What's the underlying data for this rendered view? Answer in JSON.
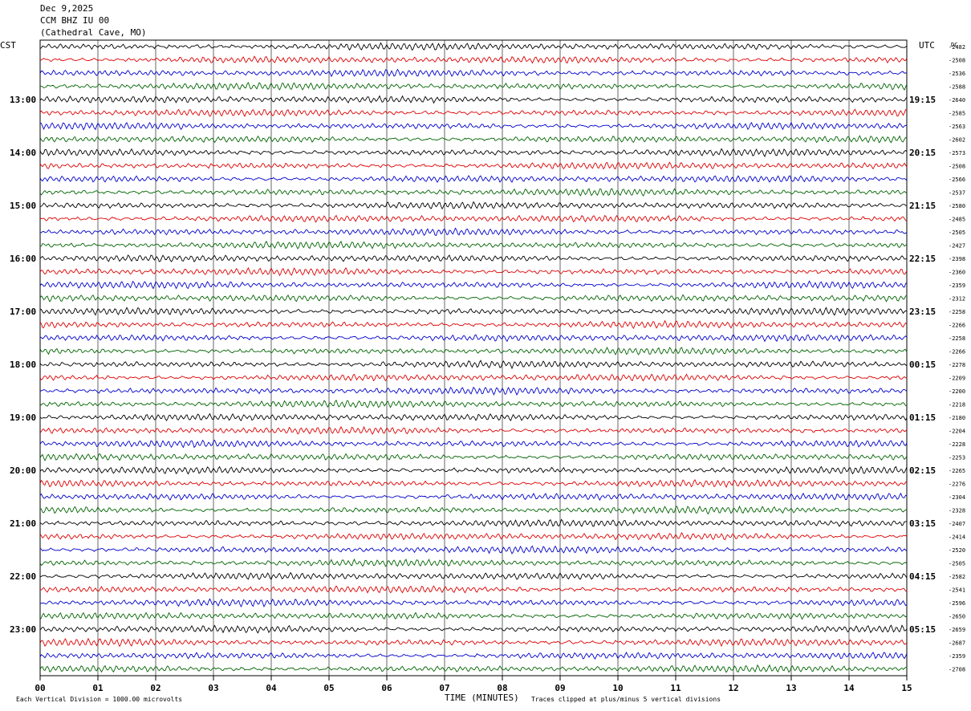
{
  "header": {
    "date": "Dec 9,2025",
    "station": "CCM BHZ IU 00",
    "location": "(Cathedral Cave, MO)"
  },
  "footer": {
    "scale_note": "Each Vertical Division = 1000.00 microvolts",
    "clip_note": "Traces clipped at plus/minus 5 vertical divisions"
  },
  "colors": {
    "trace_cycle": [
      "#000000",
      "#dd0000",
      "#0000cc",
      "#006400"
    ],
    "grid": "#000000",
    "background": "#ffffff"
  },
  "chart_data": {
    "type": "line",
    "xlabel": "TIME (MINUTES)",
    "x_ticks": [
      "00",
      "01",
      "02",
      "03",
      "04",
      "05",
      "06",
      "07",
      "08",
      "09",
      "10",
      "11",
      "12",
      "13",
      "14",
      "15"
    ],
    "xlim": [
      0,
      15
    ],
    "left_axis_title": "CST",
    "right_axis_title": "UTC",
    "dc_title": "DC",
    "left_hour_labels": [
      "13:00",
      "14:00",
      "15:00",
      "16:00",
      "17:00",
      "18:00",
      "19:00",
      "20:00",
      "21:00",
      "22:00",
      "23:00"
    ],
    "right_hour_labels": [
      "19:15",
      "20:15",
      "21:15",
      "22:15",
      "23:15",
      "00:15",
      "01:15",
      "02:15",
      "03:15",
      "04:15",
      "05:15"
    ],
    "rows_per_hour": 4,
    "dc_offsets": [
      "-2482",
      "-2508",
      "-2536",
      "-2588",
      "-2640",
      "-2585",
      "-2563",
      "-2602",
      "-2573",
      "-2508",
      "-2566",
      "-2537",
      "-2580",
      "-2485",
      "-2505",
      "-2427",
      "-2398",
      "-2360",
      "-2359",
      "-2312",
      "-2258",
      "-2266",
      "-2258",
      "-2266",
      "-2278",
      "-2209",
      "-2200",
      "-2218",
      "-2180",
      "-2204",
      "-2228",
      "-2253",
      "-2265",
      "-2276",
      "-2304",
      "-2328",
      "-2407",
      "-2414",
      "-2520",
      "-2505",
      "-2582",
      "-2541",
      "-2596",
      "-2650",
      "-2659",
      "-2687",
      "-2359",
      "-2708"
    ]
  }
}
